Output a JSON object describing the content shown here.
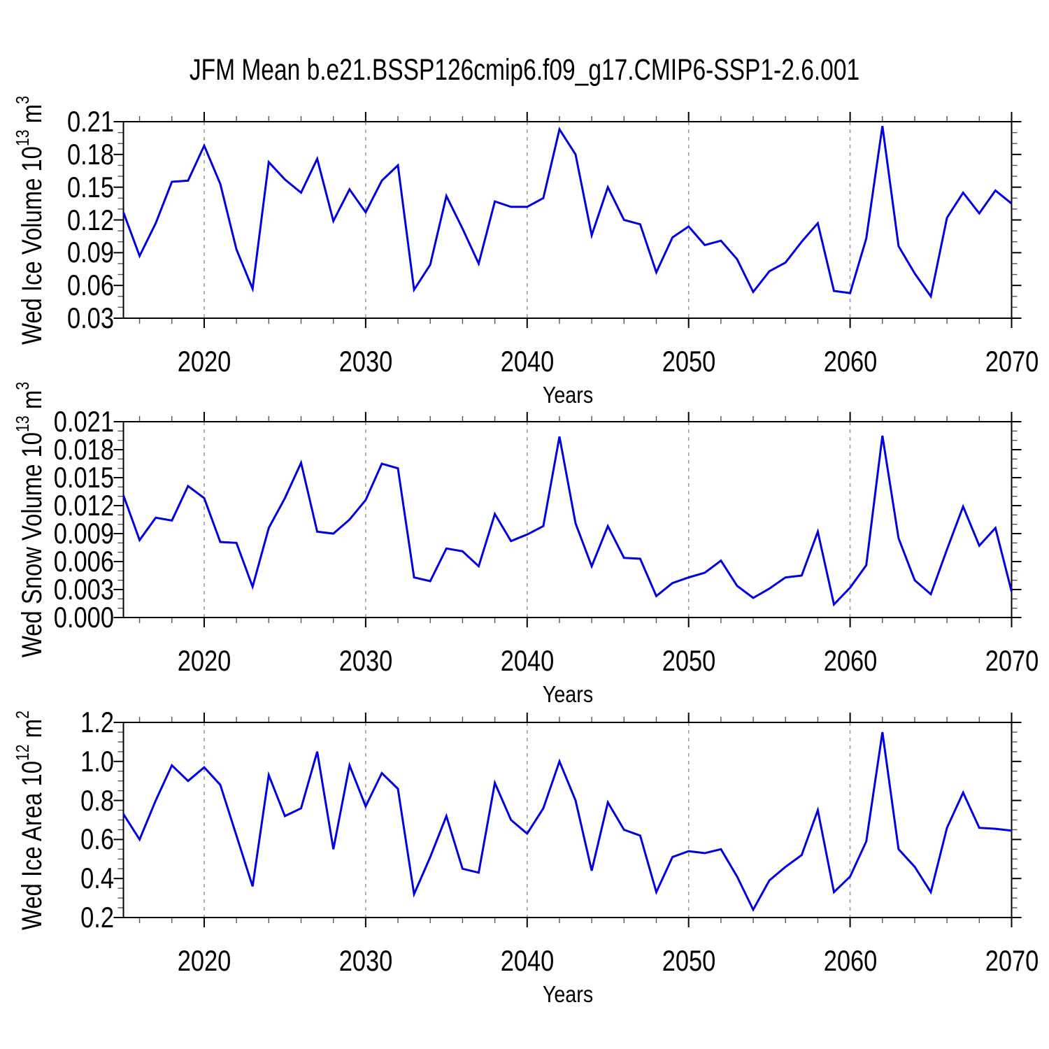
{
  "title": "JFM Mean b.e21.BSSP126cmip6.f09_g17.CMIP6-SSP1-2.6.001",
  "colors": {
    "line": "#0000e0",
    "axis": "#000000",
    "minor_tick": "#555555",
    "gridline": "#9a9a9a",
    "text": "#000000"
  },
  "chart_data": [
    {
      "type": "line",
      "name": "wed-ice-volume",
      "ylabel": {
        "prefix": "Wed Ice Volume 10",
        "exp": "13",
        "unit": " m",
        "unit_exp": "3",
        "plain": "Wed Ice Volume 10^13 m^3"
      },
      "xlabel": "Years",
      "x_start": 2015,
      "x_end": 2070,
      "x_step": 1,
      "xlim": [
        2015,
        2070
      ],
      "ylim": [
        0.03,
        0.21
      ],
      "ytick_labels": [
        "0.03",
        "0.06",
        "0.09",
        "0.12",
        "0.15",
        "0.18",
        "0.21"
      ],
      "ytick_step": 0.03,
      "yminor_step": 0.01,
      "ydecimals": 2,
      "xtick_labels": [
        "2020",
        "2030",
        "2040",
        "2050",
        "2060",
        "2070"
      ],
      "xminor_step": 2,
      "grid_years": [
        2020,
        2030,
        2040,
        2050,
        2060
      ],
      "grid_style": "dashed-vertical",
      "legend": "none",
      "values": [
        0.127,
        0.087,
        0.117,
        0.155,
        0.156,
        0.188,
        0.153,
        0.093,
        0.057,
        0.173,
        0.157,
        0.145,
        0.176,
        0.119,
        0.148,
        0.127,
        0.156,
        0.17,
        0.056,
        0.079,
        0.142,
        0.112,
        0.08,
        0.137,
        0.132,
        0.132,
        0.14,
        0.203,
        0.18,
        0.106,
        0.15,
        0.12,
        0.116,
        0.072,
        0.104,
        0.114,
        0.097,
        0.101,
        0.084,
        0.054,
        0.073,
        0.081,
        0.1,
        0.117,
        0.055,
        0.053,
        0.103,
        0.206,
        0.096,
        0.071,
        0.05,
        0.122,
        0.145,
        0.126,
        0.147,
        0.135
      ]
    },
    {
      "type": "line",
      "name": "wed-snow-volume",
      "ylabel": {
        "prefix": "Wed Snow Volume 10",
        "exp": "13",
        "unit": " m",
        "unit_exp": "3",
        "plain": "Wed Snow Volume 10^13 m^3"
      },
      "xlabel": "Years",
      "x_start": 2015,
      "x_end": 2070,
      "x_step": 1,
      "xlim": [
        2015,
        2070
      ],
      "ylim": [
        0.0,
        0.021
      ],
      "ytick_labels": [
        "0.000",
        "0.003",
        "0.006",
        "0.009",
        "0.012",
        "0.015",
        "0.018",
        "0.021"
      ],
      "ytick_step": 0.003,
      "yminor_step": 0.001,
      "ydecimals": 3,
      "xtick_labels": [
        "2020",
        "2030",
        "2040",
        "2050",
        "2060",
        "2070"
      ],
      "xminor_step": 2,
      "grid_years": [
        2020,
        2030,
        2040,
        2050,
        2060
      ],
      "grid_style": "dashed-vertical",
      "legend": "none",
      "values": [
        0.0131,
        0.0083,
        0.0107,
        0.0104,
        0.0141,
        0.0128,
        0.0081,
        0.008,
        0.0033,
        0.0096,
        0.0128,
        0.0166,
        0.0092,
        0.009,
        0.0105,
        0.0126,
        0.0165,
        0.016,
        0.0043,
        0.0039,
        0.0074,
        0.0071,
        0.0055,
        0.0111,
        0.0082,
        0.0089,
        0.0098,
        0.0194,
        0.0101,
        0.0055,
        0.0098,
        0.0064,
        0.0063,
        0.0023,
        0.0037,
        0.0043,
        0.0048,
        0.0061,
        0.0034,
        0.0021,
        0.0031,
        0.0043,
        0.0045,
        0.0092,
        0.0014,
        0.0032,
        0.0056,
        0.0195,
        0.0085,
        0.004,
        0.0025,
        0.0073,
        0.0119,
        0.0077,
        0.0096,
        0.0028
      ]
    },
    {
      "type": "line",
      "name": "wed-ice-area",
      "ylabel": {
        "prefix": "Wed Ice Area 10",
        "exp": "12",
        "unit": " m",
        "unit_exp": "2",
        "plain": "Wed Ice Area 10^12 m^2"
      },
      "xlabel": "Years",
      "x_start": 2015,
      "x_end": 2070,
      "x_step": 1,
      "xlim": [
        2015,
        2070
      ],
      "ylim": [
        0.2,
        1.2
      ],
      "ytick_labels": [
        "0.2",
        "0.4",
        "0.6",
        "0.8",
        "1.0",
        "1.2"
      ],
      "ytick_step": 0.2,
      "yminor_step": 0.05,
      "ydecimals": 1,
      "xtick_labels": [
        "2020",
        "2030",
        "2040",
        "2050",
        "2060",
        "2070"
      ],
      "xminor_step": 2,
      "grid_years": [
        2020,
        2030,
        2040,
        2050,
        2060
      ],
      "grid_style": "dashed-vertical",
      "legend": "none",
      "values": [
        0.73,
        0.6,
        0.8,
        0.98,
        0.9,
        0.97,
        0.88,
        0.62,
        0.36,
        0.93,
        0.72,
        0.76,
        1.05,
        0.55,
        0.98,
        0.77,
        0.94,
        0.86,
        0.32,
        0.51,
        0.72,
        0.45,
        0.43,
        0.89,
        0.7,
        0.63,
        0.76,
        1.0,
        0.8,
        0.44,
        0.79,
        0.65,
        0.62,
        0.33,
        0.51,
        0.54,
        0.53,
        0.55,
        0.41,
        0.24,
        0.39,
        0.46,
        0.52,
        0.75,
        0.33,
        0.41,
        0.59,
        1.15,
        0.55,
        0.46,
        0.33,
        0.66,
        0.84,
        0.66,
        0.655,
        0.645
      ]
    }
  ]
}
